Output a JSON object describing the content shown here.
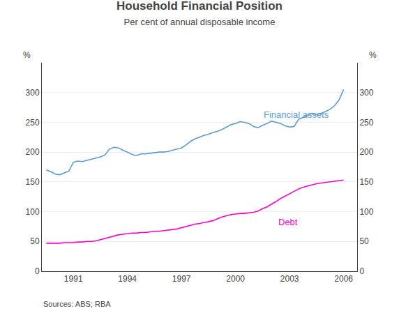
{
  "chart_data": {
    "type": "line",
    "title": "Household Financial Position",
    "subtitle": "Per cent of annual disposable income",
    "ylabel": "%",
    "y2label": "%",
    "x": [
      1989.5,
      1989.75,
      1990.0,
      1990.25,
      1990.5,
      1990.75,
      1991.0,
      1991.25,
      1991.5,
      1991.75,
      1992.0,
      1992.25,
      1992.5,
      1992.75,
      1993.0,
      1993.25,
      1993.5,
      1993.75,
      1994.0,
      1994.25,
      1994.5,
      1994.75,
      1995.0,
      1995.25,
      1995.5,
      1995.75,
      1996.0,
      1996.25,
      1996.5,
      1996.75,
      1997.0,
      1997.25,
      1997.5,
      1997.75,
      1998.0,
      1998.25,
      1998.5,
      1998.75,
      1999.0,
      1999.25,
      1999.5,
      1999.75,
      2000.0,
      2000.25,
      2000.5,
      2000.75,
      2001.0,
      2001.25,
      2001.5,
      2001.75,
      2002.0,
      2002.25,
      2002.5,
      2002.75,
      2003.0,
      2003.25,
      2003.5,
      2003.75,
      2004.0,
      2004.25,
      2004.5,
      2004.75,
      2005.0,
      2005.25,
      2005.5,
      2005.75,
      2006.0
    ],
    "series": [
      {
        "name": "Financial assets",
        "color": "#5b9bd5",
        "values": [
          170,
          167,
          163,
          162,
          165,
          168,
          183,
          185,
          184,
          186,
          188,
          190,
          192,
          195,
          205,
          208,
          207,
          203,
          200,
          196,
          194,
          197,
          197,
          198,
          199,
          200,
          200,
          201,
          203,
          205,
          207,
          212,
          218,
          222,
          225,
          228,
          230,
          233,
          235,
          238,
          242,
          246,
          248,
          251,
          250,
          248,
          243,
          241,
          245,
          248,
          252,
          250,
          248,
          244,
          242,
          243,
          255,
          258,
          262,
          265,
          263,
          265,
          268,
          272,
          278,
          288,
          305
        ]
      },
      {
        "name": "Debt",
        "color": "#ff00cc",
        "values": [
          47,
          47,
          47,
          47,
          48,
          48,
          48,
          49,
          49,
          50,
          50,
          51,
          53,
          55,
          57,
          59,
          61,
          62,
          63,
          64,
          64,
          65,
          65,
          66,
          67,
          67,
          68,
          69,
          70,
          71,
          73,
          75,
          77,
          79,
          80,
          82,
          83,
          85,
          88,
          91,
          93,
          95,
          96,
          97,
          97,
          98,
          99,
          101,
          105,
          108,
          112,
          117,
          122,
          126,
          130,
          134,
          138,
          141,
          143,
          145,
          147,
          148,
          149,
          150,
          151,
          152,
          153
        ]
      }
    ],
    "annotations": [
      {
        "text": "Financial assets",
        "x": 2001.5,
        "y": 263
      },
      {
        "text": "Debt",
        "x": 2002.3,
        "y": 82
      },
      {
        "text": "Sources: ABS; RBA"
      }
    ],
    "xlim": [
      1989.25,
      2006.75
    ],
    "xticks": [
      1991,
      1994,
      1997,
      2000,
      2003,
      2006
    ],
    "ylim": [
      0,
      350
    ],
    "yticks": [
      0,
      50,
      100,
      150,
      200,
      250,
      300
    ],
    "y2lim": [
      0,
      350
    ],
    "y2ticks": [
      0,
      50,
      100,
      150,
      200,
      250,
      300
    ],
    "grid": true
  }
}
